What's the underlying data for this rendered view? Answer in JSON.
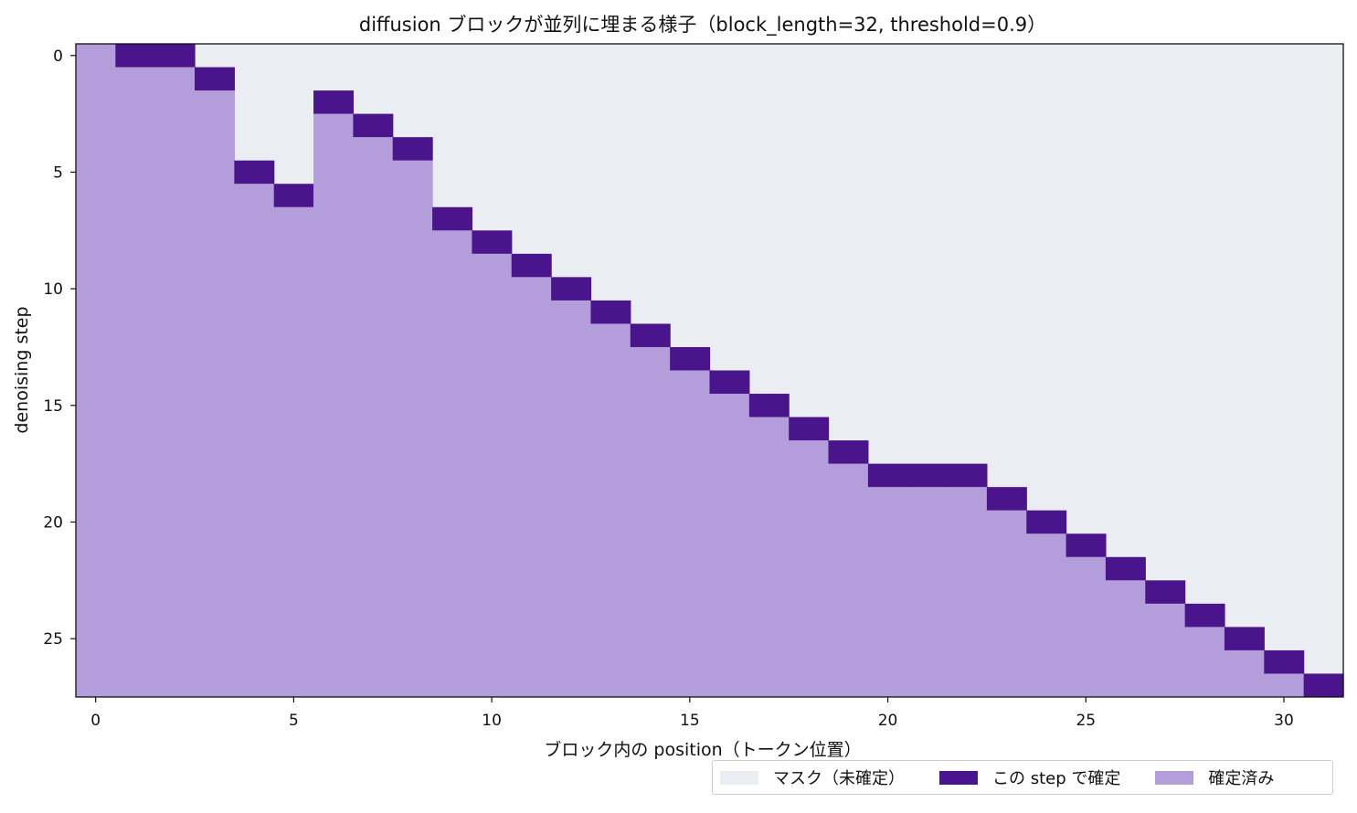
{
  "chart_data": {
    "type": "heatmap",
    "title": "diffusion ブロックが並列に埋まる様子（block_length=32, threshold=0.9）",
    "xlabel": "ブロック内の position（トークン位置）",
    "ylabel": "denoising step",
    "x_ticks": [
      0,
      5,
      10,
      15,
      20,
      25,
      30
    ],
    "y_ticks": [
      0,
      5,
      10,
      15,
      20,
      25
    ],
    "x_range": [
      0,
      31
    ],
    "y_range": [
      0,
      27
    ],
    "states": {
      "masked": {
        "label": "マスク（未確定）",
        "color": "#eaeef2"
      },
      "decoded_this_step": {
        "label": "この step で確定",
        "color": "#4a148c"
      },
      "decoded": {
        "label": "確定済み",
        "color": "#b39ddb"
      }
    },
    "decode_step_per_position": [
      -1,
      0,
      0,
      1,
      5,
      6,
      2,
      3,
      4,
      7,
      8,
      9,
      10,
      11,
      12,
      13,
      14,
      15,
      16,
      17,
      18,
      18,
      18,
      19,
      20,
      21,
      22,
      23,
      24,
      25,
      26,
      27
    ],
    "legend_position": "bottom-right"
  }
}
